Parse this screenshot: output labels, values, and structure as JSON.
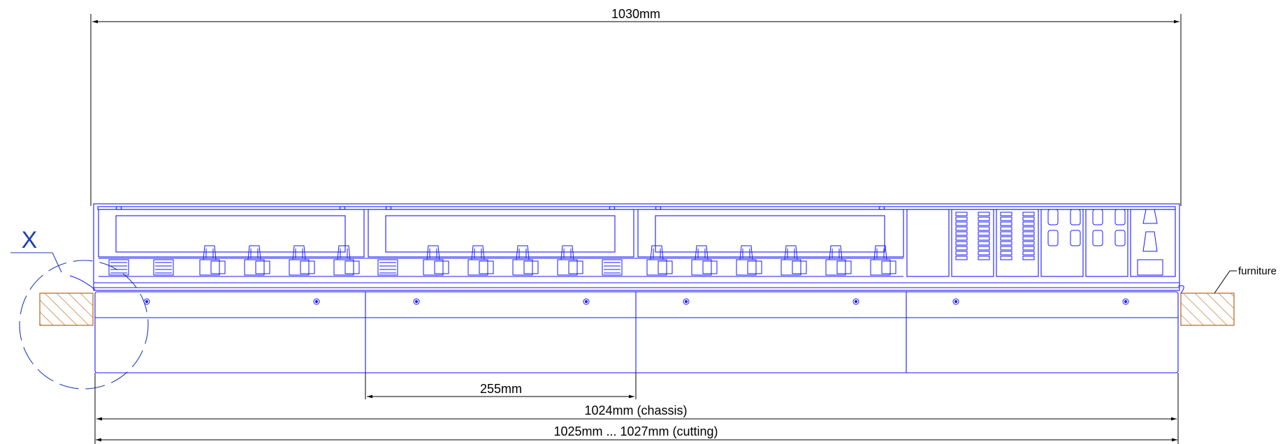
{
  "dimensions": {
    "overall_width": "1030mm",
    "module_width": "255mm",
    "chassis_width": "1024mm (chassis)",
    "cutting_width": "1025mm ... 1027mm (cutting)"
  },
  "labels": {
    "detail_marker": "X",
    "furniture": "furniture"
  },
  "colors": {
    "line": "#1a1aff",
    "dimension_line": "#000000",
    "detail_circle": "#1f3fb0",
    "furniture_hatch": "#b5651d",
    "background": "#ffffff"
  }
}
